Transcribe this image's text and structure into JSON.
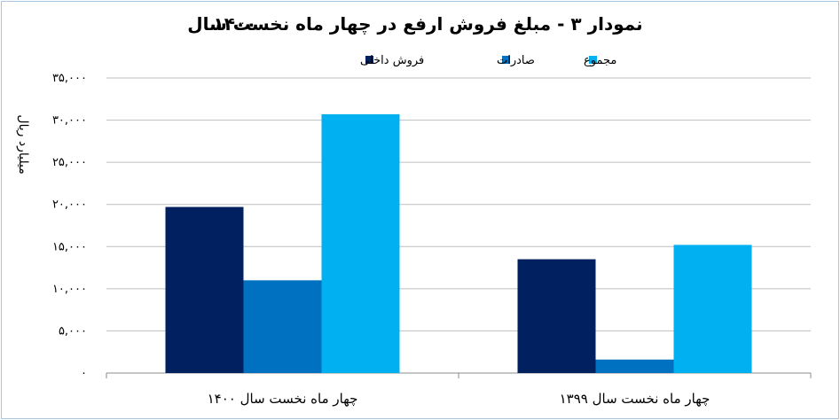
{
  "chart_data": {
    "type": "bar",
    "title_line1": "نمودار ۳ - مبلغ فروش ارفع در چهار ماه نخست سال",
    "title_line2": "۱۴۰۰",
    "ylabel": "میلیارد ریال",
    "categories": [
      "چهار ماه نخست سال ۱۴۰۰",
      "چهار ماه نخست سال ۱۳۹۹"
    ],
    "series": [
      {
        "name": "فروش داخلی",
        "color": "#002060",
        "values": [
          19700,
          13500
        ]
      },
      {
        "name": "صادرات",
        "color": "#0070c0",
        "values": [
          11000,
          1600
        ]
      },
      {
        "name": "مجموع",
        "color": "#00b0f0",
        "values": [
          30700,
          15200
        ]
      }
    ],
    "ylim": [
      0,
      35000
    ],
    "yticks": [
      {
        "value": 0,
        "label": "۰"
      },
      {
        "value": 5000,
        "label": "۵,۰۰۰"
      },
      {
        "value": 10000,
        "label": "۱۰,۰۰۰"
      },
      {
        "value": 15000,
        "label": "۱۵,۰۰۰"
      },
      {
        "value": 20000,
        "label": "۲۰,۰۰۰"
      },
      {
        "value": 25000,
        "label": "۲۵,۰۰۰"
      },
      {
        "value": 30000,
        "label": "۳۰,۰۰۰"
      },
      {
        "value": 35000,
        "label": "۳۵,۰۰۰"
      }
    ],
    "grid": true,
    "legend_position": "top"
  }
}
